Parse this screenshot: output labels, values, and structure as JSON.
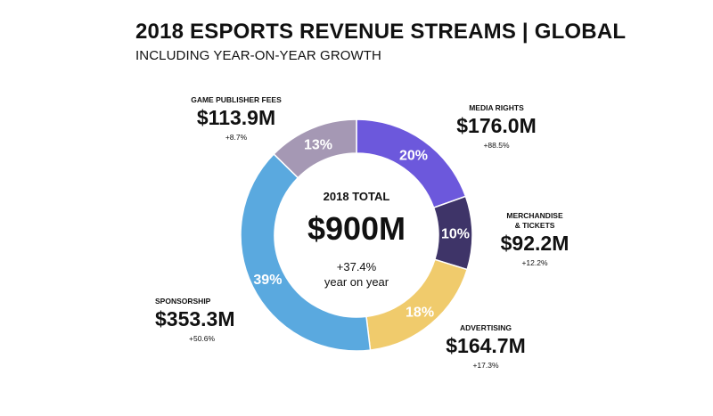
{
  "header": {
    "title": "2018 ESPORTS REVENUE STREAMS | GLOBAL",
    "subtitle": "INCLUDING YEAR-ON-YEAR GROWTH"
  },
  "center": {
    "label": "2018 TOTAL",
    "value": "$900M",
    "growth": "+37.4%",
    "growth_note": "year on year"
  },
  "chart_data": {
    "type": "pie",
    "donut": true,
    "title": "2018 ESPORTS REVENUE STREAMS | GLOBAL",
    "subtitle": "INCLUDING YEAR-ON-YEAR GROWTH",
    "total": 900,
    "total_label": "$900M",
    "total_growth": "+37.4%",
    "slices": [
      {
        "name": "MEDIA RIGHTS",
        "name_lines": [
          "MEDIA RIGHTS"
        ],
        "value": 176.0,
        "value_label": "$176.0M",
        "percent": 20,
        "percent_label": "20%",
        "growth": "+88.5%",
        "color": "#6c58dc"
      },
      {
        "name": "MERCHANDISE & TICKETS",
        "name_lines": [
          "MERCHANDISE",
          "& TICKETS"
        ],
        "value": 92.2,
        "value_label": "$92.2M",
        "percent": 10,
        "percent_label": "10%",
        "growth": "+12.2%",
        "color": "#3e3468"
      },
      {
        "name": "ADVERTISING",
        "name_lines": [
          "ADVERTISING"
        ],
        "value": 164.7,
        "value_label": "$164.7M",
        "percent": 18,
        "percent_label": "18%",
        "growth": "+17.3%",
        "color": "#f0cb6c"
      },
      {
        "name": "SPONSORSHIP",
        "name_lines": [
          "SPONSORSHIP"
        ],
        "value": 353.3,
        "value_label": "$353.3M",
        "percent": 39,
        "percent_label": "39%",
        "growth": "+50.6%",
        "color": "#5aa9df"
      },
      {
        "name": "GAME PUBLISHER FEES",
        "name_lines": [
          "GAME PUBLISHER FEES"
        ],
        "value": 113.9,
        "value_label": "$113.9M",
        "percent": 13,
        "percent_label": "13%",
        "growth": "+8.7%",
        "color": "#a598b4"
      }
    ]
  }
}
